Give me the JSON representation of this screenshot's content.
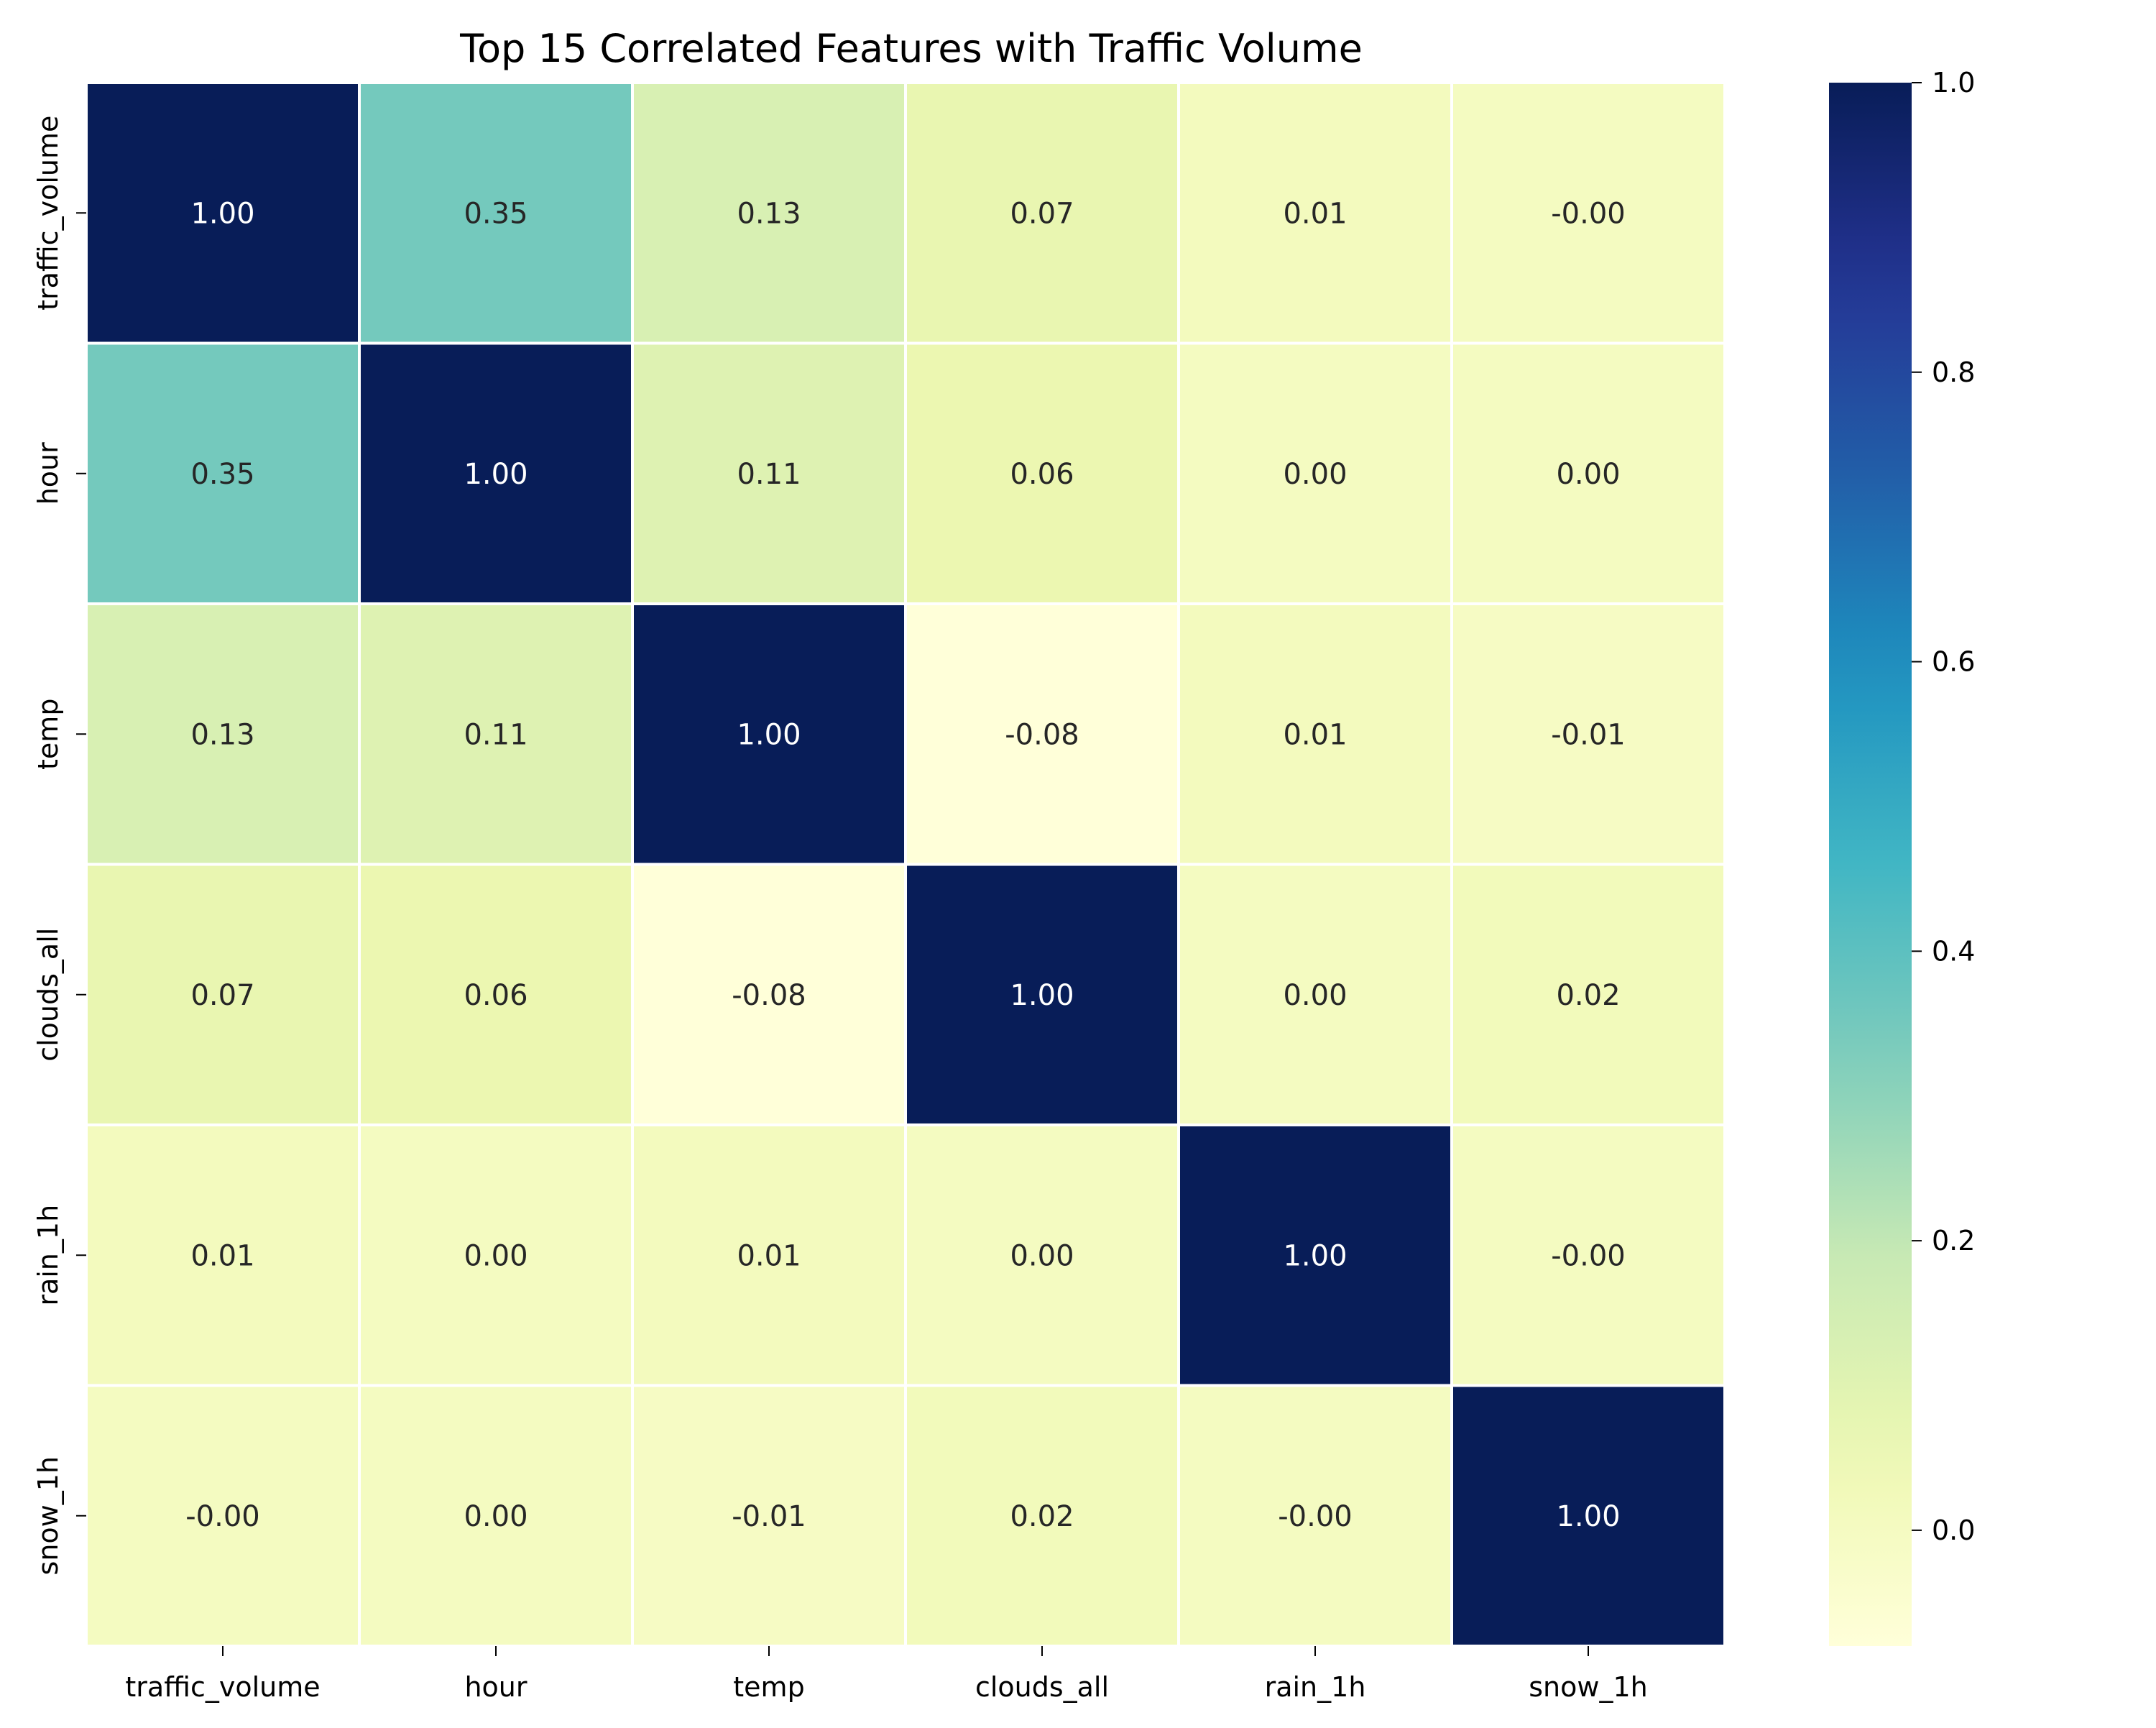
{
  "chart_data": {
    "type": "heatmap",
    "title": "Top 15 Correlated Features with Traffic Volume",
    "xlabel": "",
    "ylabel": "",
    "x_categories": [
      "traffic_volume",
      "hour",
      "temp",
      "clouds_all",
      "rain_1h",
      "snow_1h"
    ],
    "y_categories": [
      "traffic_volume",
      "hour",
      "temp",
      "clouds_all",
      "rain_1h",
      "snow_1h"
    ],
    "values": [
      [
        1.0,
        0.35,
        0.13,
        0.07,
        0.01,
        -0.0
      ],
      [
        0.35,
        1.0,
        0.11,
        0.06,
        0.0,
        0.0
      ],
      [
        0.13,
        0.11,
        1.0,
        -0.08,
        0.01,
        -0.01
      ],
      [
        0.07,
        0.06,
        -0.08,
        1.0,
        0.0,
        0.02
      ],
      [
        0.01,
        0.0,
        0.01,
        0.0,
        1.0,
        -0.0
      ],
      [
        -0.0,
        0.0,
        -0.01,
        0.02,
        -0.0,
        1.0
      ]
    ],
    "annotations": [
      [
        "1.00",
        "0.35",
        "0.13",
        "0.07",
        "0.01",
        "-0.00"
      ],
      [
        "0.35",
        "1.00",
        "0.11",
        "0.06",
        "0.00",
        "0.00"
      ],
      [
        "0.13",
        "0.11",
        "1.00",
        "-0.08",
        "0.01",
        "-0.01"
      ],
      [
        "0.07",
        "0.06",
        "-0.08",
        "1.00",
        "0.00",
        "0.02"
      ],
      [
        "0.01",
        "0.00",
        "0.01",
        "0.00",
        "1.00",
        "-0.00"
      ],
      [
        "-0.00",
        "0.00",
        "-0.01",
        "0.02",
        "-0.00",
        "1.00"
      ]
    ],
    "colormap": "YlGnBu",
    "vmin": -0.08,
    "vmax": 1.0,
    "colorbar_ticks": [
      "0.0",
      "0.2",
      "0.4",
      "0.6",
      "0.8",
      "1.0"
    ],
    "colorbar_tick_values": [
      0.0,
      0.2,
      0.4,
      0.6,
      0.8,
      1.0
    ],
    "grid_line_color": "#ffffff",
    "legend": "colorbar-right"
  }
}
